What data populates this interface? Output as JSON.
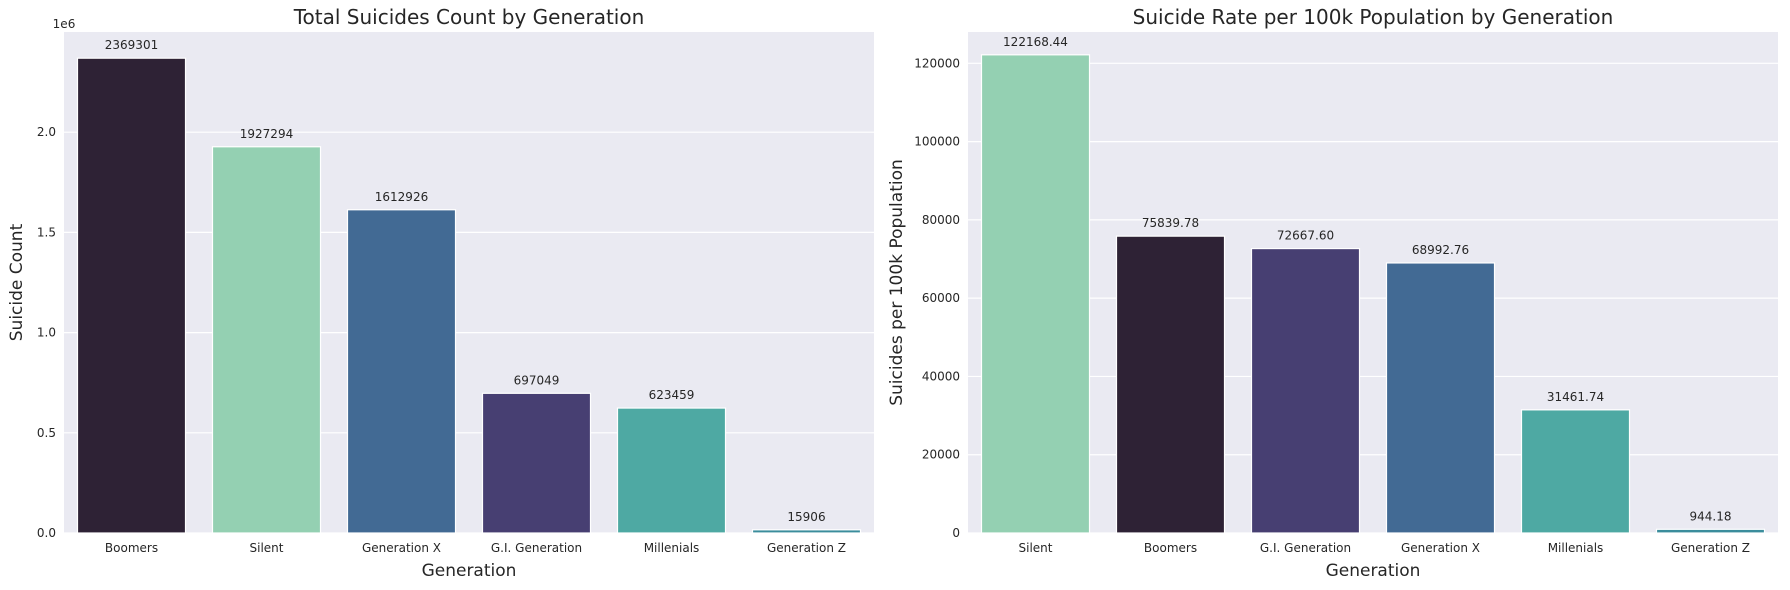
{
  "chart_data": [
    {
      "type": "bar",
      "title": "Total Suicides Count by Generation",
      "xlabel": "Generation",
      "ylabel": "Suicide Count",
      "y_offset_label": "1e6",
      "ylim": [
        0,
        2500000
      ],
      "ytick_values": [
        0,
        500000,
        1000000,
        1500000,
        2000000
      ],
      "ytick_labels": [
        "0.0",
        "0.5",
        "1.0",
        "1.5",
        "2.0"
      ],
      "categories": [
        "Boomers",
        "Silent",
        "Generation X",
        "G.I. Generation",
        "Millenials",
        "Generation Z"
      ],
      "values": [
        2369301,
        1927294,
        1612926,
        697049,
        623459,
        15906
      ],
      "value_labels": [
        "2369301",
        "1927294",
        "1612926",
        "697049",
        "623459",
        "15906"
      ],
      "colors": [
        "#2e2235",
        "#94d0b2",
        "#426a94",
        "#473f72",
        "#4ea9a3",
        "#3b8d9c"
      ],
      "grid": true
    },
    {
      "type": "bar",
      "title": "Suicide Rate per 100k Population by Generation",
      "xlabel": "Generation",
      "ylabel": "Suicides per 100k Population",
      "ylim": [
        0,
        128000
      ],
      "ytick_values": [
        0,
        20000,
        40000,
        60000,
        80000,
        100000,
        120000
      ],
      "ytick_labels": [
        "0",
        "20000",
        "40000",
        "60000",
        "80000",
        "100000",
        "120000"
      ],
      "categories": [
        "Silent",
        "Boomers",
        "G.I. Generation",
        "Generation X",
        "Millenials",
        "Generation Z"
      ],
      "values": [
        122168.44,
        75839.78,
        72667.6,
        68992.76,
        31461.74,
        944.18
      ],
      "value_labels": [
        "122168.44",
        "75839.78",
        "72667.60",
        "68992.76",
        "31461.74",
        "944.18"
      ],
      "colors": [
        "#94d0b2",
        "#2e2235",
        "#473f72",
        "#426a94",
        "#4ea9a3",
        "#3b8d9c"
      ],
      "grid": true
    }
  ]
}
